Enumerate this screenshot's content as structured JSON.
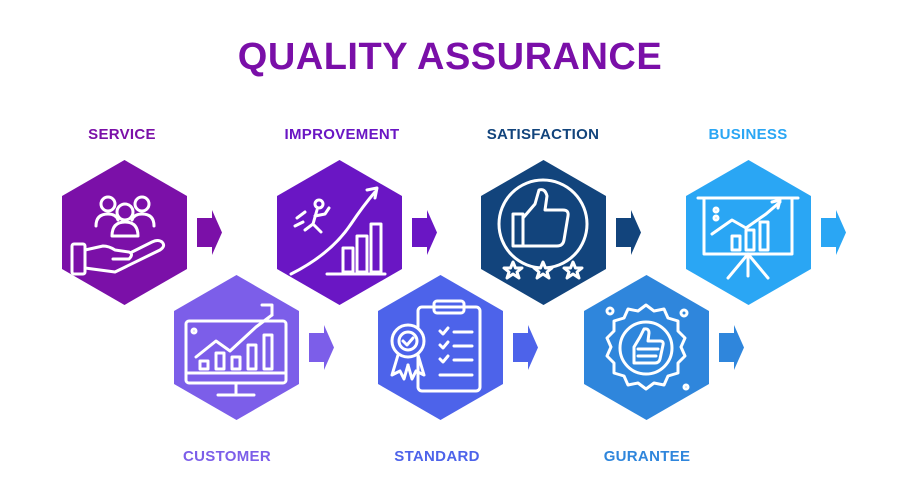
{
  "title": "QUALITY ASSURANCE",
  "items": [
    {
      "label": "SERVICE",
      "color": "#7b10a8",
      "icon": "hand-with-people-icon",
      "row": "top"
    },
    {
      "label": "IMPROVEMENT",
      "color": "#6a16c4",
      "icon": "person-climbing-growth-icon",
      "row": "top"
    },
    {
      "label": "SATISFACTION",
      "color": "#12447c",
      "icon": "thumbs-up-three-stars-icon",
      "row": "top"
    },
    {
      "label": "BUSINESS",
      "color": "#2aa6f4",
      "icon": "presentation-board-chart-icon",
      "row": "top"
    },
    {
      "label": "CUSTOMER",
      "color": "#7c5ee9",
      "icon": "monitor-growth-chart-icon",
      "row": "bottom"
    },
    {
      "label": "STANDARD",
      "color": "#4d63ea",
      "icon": "clipboard-award-icon",
      "row": "bottom"
    },
    {
      "label": "GURANTEE",
      "color": "#2f86dc",
      "icon": "guarantee-badge-icon",
      "row": "bottom"
    }
  ]
}
